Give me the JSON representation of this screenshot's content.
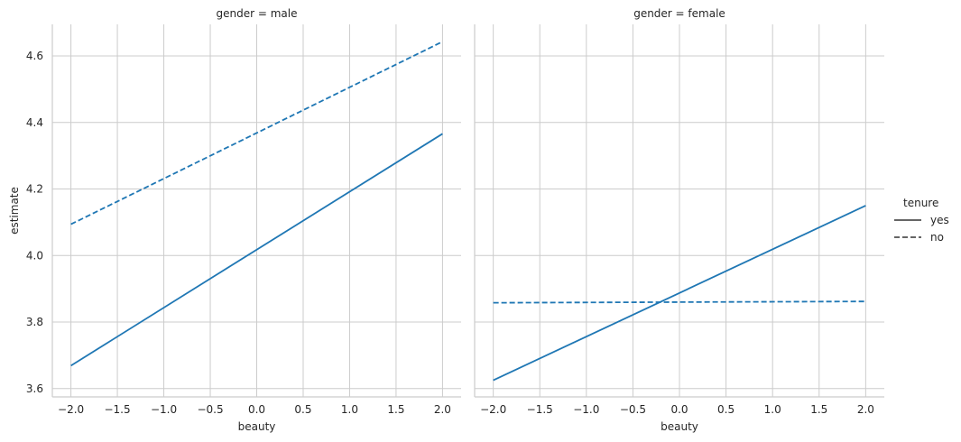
{
  "chart_data": {
    "type": "line",
    "ylabel": "estimate",
    "ylim": [
      3.575,
      4.695
    ],
    "xlim": [
      -2.2,
      2.2
    ],
    "x_ticks": [
      "−2.0",
      "−1.5",
      "−1.0",
      "−0.5",
      "0.0",
      "0.5",
      "1.0",
      "1.5",
      "2.0"
    ],
    "x_tick_values": [
      -2.0,
      -1.5,
      -1.0,
      -0.5,
      0.0,
      0.5,
      1.0,
      1.5,
      2.0
    ],
    "y_ticks": [
      "3.6",
      "3.8",
      "4.0",
      "4.2",
      "4.4",
      "4.6"
    ],
    "y_tick_values": [
      3.6,
      3.8,
      4.0,
      4.2,
      4.4,
      4.6
    ],
    "grid": true,
    "color": "#1f77b4",
    "legend": {
      "title": "tenure",
      "placement": "right",
      "entries": [
        {
          "label": "yes",
          "style": "solid"
        },
        {
          "label": "no",
          "style": "dashed"
        }
      ]
    },
    "facets": [
      {
        "title": "gender = male",
        "xlabel": "beauty",
        "series": [
          {
            "tenure": "yes",
            "style": "solid",
            "x": [
              -2.0,
              2.0
            ],
            "y": [
              3.669,
              4.366
            ]
          },
          {
            "tenure": "no",
            "style": "dashed",
            "x": [
              -2.0,
              2.0
            ],
            "y": [
              4.094,
              4.643
            ]
          }
        ]
      },
      {
        "title": "gender = female",
        "xlabel": "beauty",
        "series": [
          {
            "tenure": "yes",
            "style": "solid",
            "x": [
              -2.0,
              2.0
            ],
            "y": [
              3.625,
              4.15
            ]
          },
          {
            "tenure": "no",
            "style": "dashed",
            "x": [
              -2.0,
              2.0
            ],
            "y": [
              3.858,
              3.862
            ]
          }
        ]
      }
    ]
  }
}
